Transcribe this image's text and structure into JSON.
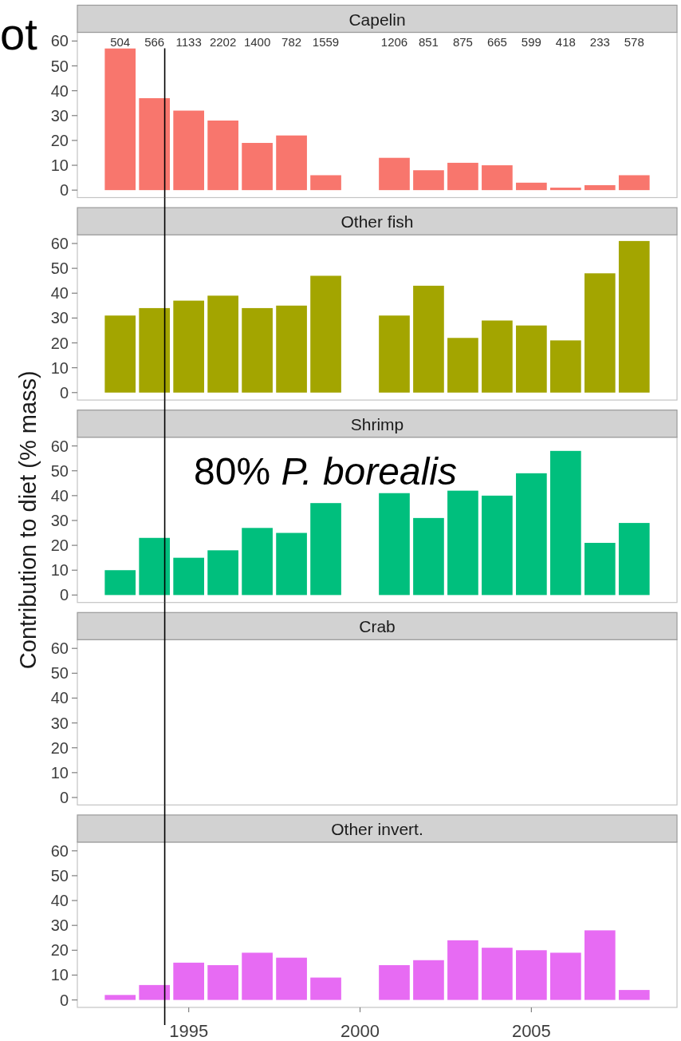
{
  "chart_data": [
    {
      "type": "bar",
      "title": "Capelin",
      "x": [
        1993,
        1994,
        1995,
        1996,
        1997,
        1998,
        1999,
        2001,
        2002,
        2003,
        2004,
        2005,
        2006,
        2007,
        2008
      ],
      "values": [
        57,
        37,
        32,
        28,
        19,
        22,
        6,
        13,
        8,
        11,
        10,
        3,
        1,
        2,
        6
      ],
      "color": "#f8766d",
      "xlim": [
        1991.75,
        2009.25
      ],
      "ylim": [
        -3,
        63.5
      ],
      "yticks": [
        0,
        10,
        20,
        30,
        40,
        50,
        60
      ],
      "tick_labels": "y",
      "ref_lines": [
        {
          "axis": "x",
          "value": 1994.3,
          "color": "#000000"
        }
      ],
      "annotations": [
        "504",
        "566",
        "1133",
        "2202",
        "1400",
        "782",
        "1559",
        "1206",
        "851",
        "875",
        "665",
        "599",
        "418",
        "233",
        "578",
        "ot"
      ]
    },
    {
      "type": "bar",
      "title": "Other fish",
      "x": [
        1993,
        1994,
        1995,
        1996,
        1997,
        1998,
        1999,
        2001,
        2002,
        2003,
        2004,
        2005,
        2006,
        2007,
        2008
      ],
      "values": [
        31,
        34,
        37,
        39,
        34,
        35,
        47,
        31,
        43,
        22,
        29,
        27,
        21,
        48,
        61
      ],
      "color": "#a3a500",
      "xlim": [
        1991.75,
        2009.25
      ],
      "ylim": [
        -3,
        63.5
      ],
      "yticks": [
        0,
        10,
        20,
        30,
        40,
        50,
        60
      ],
      "tick_labels": "y",
      "ref_lines": [
        {
          "axis": "x",
          "value": 1994.3,
          "color": "#000000"
        }
      ]
    },
    {
      "type": "bar",
      "title": "Shrimp",
      "ylabel": "Contribution to diet (% mass)",
      "x": [
        1993,
        1994,
        1995,
        1996,
        1997,
        1998,
        1999,
        2001,
        2002,
        2003,
        2004,
        2005,
        2006,
        2007,
        2008
      ],
      "values": [
        10,
        23,
        15,
        18,
        27,
        25,
        37,
        41,
        31,
        42,
        40,
        49,
        58,
        21,
        29
      ],
      "color": "#00bf7d",
      "xlim": [
        1991.75,
        2009.25
      ],
      "ylim": [
        -3,
        63.5
      ],
      "yticks": [
        0,
        10,
        20,
        30,
        40,
        50,
        60
      ],
      "tick_labels": "y",
      "ref_lines": [
        {
          "axis": "x",
          "value": 1994.3,
          "color": "#000000"
        }
      ],
      "annotations": [
        "80% P. borealis"
      ]
    },
    {
      "type": "bar",
      "title": "Crab",
      "xlim": [
        1991.75,
        2009.25
      ],
      "ylim": [
        -3,
        63.5
      ],
      "yticks": [
        0,
        10,
        20,
        30,
        40,
        50,
        60
      ],
      "tick_labels": "y",
      "ref_lines": [
        {
          "axis": "x",
          "value": 1994.3,
          "color": "#000000"
        }
      ]
    },
    {
      "type": "bar",
      "title": "Other invert.",
      "x": [
        1993,
        1994,
        1995,
        1996,
        1997,
        1998,
        1999,
        2001,
        2002,
        2003,
        2004,
        2005,
        2006,
        2007,
        2008
      ],
      "values": [
        2,
        6,
        15,
        14,
        19,
        17,
        9,
        14,
        16,
        24,
        21,
        20,
        19,
        28,
        4
      ],
      "color": "#e76bf3",
      "xlim": [
        1991.75,
        2009.25
      ],
      "ylim": [
        -3,
        63.5
      ],
      "xticks": [
        1995,
        2000,
        2005
      ],
      "yticks": [
        0,
        10,
        20,
        30,
        40,
        50,
        60
      ],
      "ref_lines": [
        {
          "axis": "x",
          "value": 1994.3,
          "color": "#000000"
        }
      ]
    }
  ]
}
